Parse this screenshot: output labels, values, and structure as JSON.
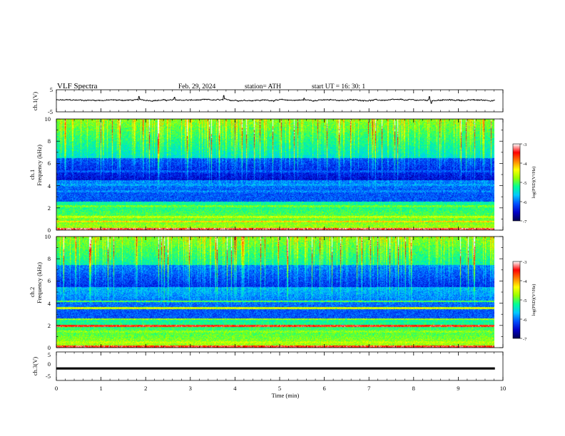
{
  "header": {
    "title": "VLF  Spectra",
    "date": "Feb. 29, 2024",
    "station": "station= ATH",
    "start": "start  UT  =    16: 30: 1"
  },
  "colors": {
    "waveform": "#000000",
    "colormap": [
      "#000050",
      "#0000c8",
      "#0050ff",
      "#00c8ff",
      "#00ff96",
      "#96ff00",
      "#ffff00",
      "#ff8000",
      "#ff0000",
      "#ffffff"
    ]
  },
  "chart_data": [
    {
      "type": "line",
      "name": "ch1-waveform",
      "ylabel": "ch.1(V)",
      "ylim": [
        -5,
        5
      ],
      "yticks": [
        "5",
        "-5"
      ],
      "xlim": [
        0,
        10
      ],
      "baseline_v": 0.3,
      "noise_amplitude_v": 0.4,
      "spikes": [
        {
          "x": 1.85,
          "y": 2.0
        },
        {
          "x": 2.65,
          "y": 1.6
        },
        {
          "x": 3.75,
          "y": 2.4
        },
        {
          "x": 5.55,
          "y": 1.2
        },
        {
          "x": 8.35,
          "y": 1.9
        },
        {
          "x": 8.4,
          "y": -1.2
        }
      ]
    },
    {
      "type": "heatmap",
      "name": "ch1-spectrogram",
      "ylabel_top": "ch.1",
      "ylabel": "Frequency  (kHz)",
      "ylim": [
        0,
        10
      ],
      "xlim": [
        0,
        10
      ],
      "yticks": [
        "10",
        "8",
        "6",
        "4",
        "2",
        "0"
      ],
      "colorbar": {
        "label": "log(PSD)(V²/Hz)",
        "range": [
          -7,
          -3
        ],
        "ticks": [
          "-3",
          "-4",
          "-5",
          "-6",
          "-7"
        ]
      },
      "data_end_min": 9.82,
      "quiet_band_khz": [
        4.5,
        6.5
      ],
      "bands_khz": [
        {
          "f": 0.15,
          "v": -3.3
        },
        {
          "f": 0.8,
          "v": -4.2
        },
        {
          "f": 1.2,
          "v": -4.6
        },
        {
          "f": 2.2,
          "v": -4.9
        },
        {
          "f": 3.5,
          "v": -5.9
        },
        {
          "f": 4.1,
          "v": -5.8
        },
        {
          "f": 5.3,
          "v": -6.1
        }
      ]
    },
    {
      "type": "heatmap",
      "name": "ch2-spectrogram",
      "ylabel_top": "ch.2",
      "ylabel": "Frequency  (kHz)",
      "ylim": [
        0,
        10
      ],
      "xlim": [
        0,
        10
      ],
      "yticks": [
        "10",
        "8",
        "6",
        "4",
        "2",
        "0"
      ],
      "colorbar": {
        "label": "log(PSD)(V²/Hz)",
        "range": [
          -7,
          -3
        ],
        "ticks": [
          "-3",
          "-4",
          "-5",
          "-6",
          "-7"
        ]
      },
      "data_end_min": 9.82,
      "quiet_band_khz": [
        5.5,
        7.5
      ],
      "bands_khz": [
        {
          "f": 0.15,
          "v": -3.4
        },
        {
          "f": 0.5,
          "v": -4.6
        },
        {
          "f": 1.5,
          "v": -4.8
        },
        {
          "f": 2.0,
          "v": -3.5
        },
        {
          "f": 2.6,
          "v": -4.7
        },
        {
          "f": 3.6,
          "v": -4.5
        },
        {
          "f": 4.2,
          "v": -5.0
        }
      ]
    },
    {
      "type": "line",
      "name": "ch3-waveform",
      "ylabel": "ch.3(V)",
      "ylim": [
        -5,
        5
      ],
      "yticks": [
        "5",
        "0",
        "-5"
      ],
      "xlim": [
        0,
        10
      ],
      "baseline_v": -0.8,
      "xlabel": "Time  (min)",
      "xticks": [
        "0",
        "1",
        "2",
        "3",
        "4",
        "5",
        "6",
        "7",
        "8",
        "9",
        "10"
      ]
    }
  ]
}
